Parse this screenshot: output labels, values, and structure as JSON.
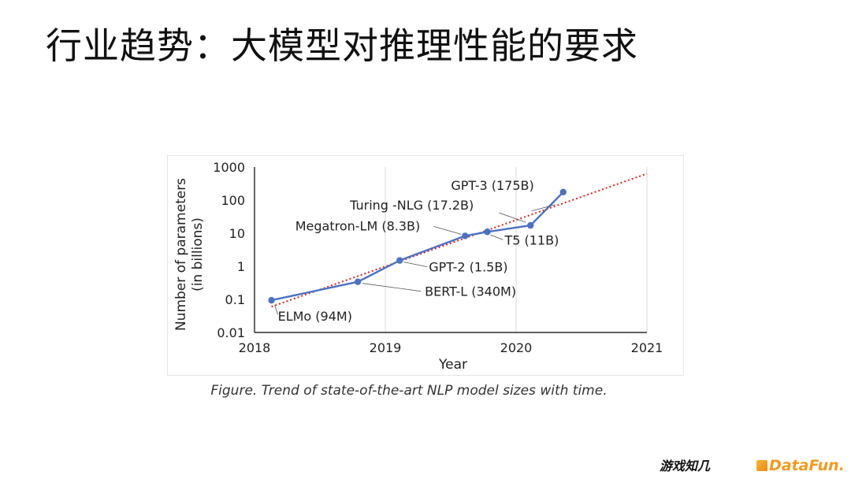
{
  "slide": {
    "title": "行业趋势：大模型对推理性能的要求",
    "caption": "Figure. Trend of state-of-the-art NLP model sizes with time."
  },
  "logos": {
    "left": "游戏知几",
    "right": "DataFun."
  },
  "colors": {
    "series": "#4a72c4",
    "trend": "#e0231c",
    "grid": "#d9d9d9",
    "axis": "#000000",
    "datafun": "#f39a1e"
  },
  "chart_data": {
    "type": "line",
    "title": "",
    "xlabel": "Year",
    "ylabel": "Number of parameters",
    "ylabel_sub": "(in billions)",
    "yscale": "log",
    "xlim": [
      2018,
      2021
    ],
    "ylim": [
      0.01,
      1000
    ],
    "x_ticks": [
      "2018",
      "2019",
      "2020",
      "2021"
    ],
    "y_ticks": [
      "0.01",
      "0.1",
      "1",
      "10",
      "100",
      "1000"
    ],
    "grid": "vertical",
    "series": [
      {
        "values": [
          {
            "x": 2018.13,
            "y": 0.094,
            "label": "ELMo (94M)"
          },
          {
            "x": 2018.79,
            "y": 0.34,
            "label": "BERT-L (340M)"
          },
          {
            "x": 2019.11,
            "y": 1.5,
            "label": "GPT-2 (1.5B)"
          },
          {
            "x": 2019.61,
            "y": 8.3,
            "label": "Megatron-LM (8.3B)"
          },
          {
            "x": 2019.78,
            "y": 11,
            "label": "T5 (11B)"
          },
          {
            "x": 2020.11,
            "y": 17.2,
            "label": "Turing -NLG (17.2B)"
          },
          {
            "x": 2020.36,
            "y": 175,
            "label": "GPT-3 (175B)"
          }
        ]
      }
    ],
    "trendline": {
      "style": "dotted",
      "from": {
        "x": 2018.13,
        "y": 0.06
      },
      "to": {
        "x": 2021,
        "y": 630
      }
    }
  }
}
